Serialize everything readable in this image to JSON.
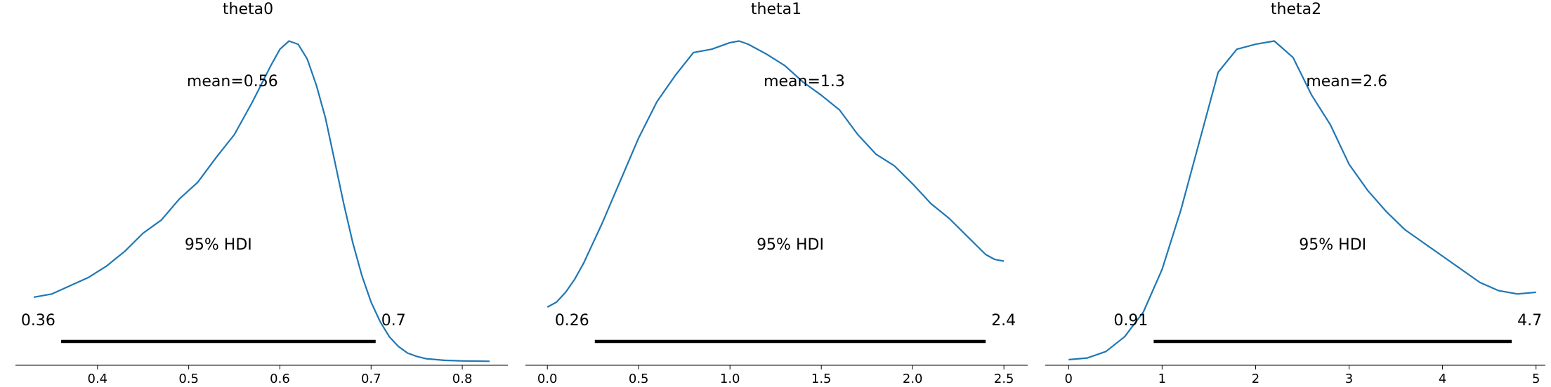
{
  "chart_data": [
    {
      "type": "line",
      "title": "theta0",
      "mean_label": "mean=0.56",
      "hdi_label": "95% HDI",
      "hdi": {
        "low": 0.36,
        "high": 0.705,
        "low_label": "0.36",
        "high_label": "0.7"
      },
      "xlim": [
        0.31,
        0.85
      ],
      "ylim": [
        0,
        1.05
      ],
      "xticks": [
        0.4,
        0.5,
        0.6,
        0.7,
        0.8
      ],
      "xtick_labels": [
        "0.4",
        "0.5",
        "0.6",
        "0.7",
        "0.8"
      ],
      "x": [
        0.33,
        0.35,
        0.37,
        0.39,
        0.41,
        0.43,
        0.45,
        0.47,
        0.49,
        0.51,
        0.53,
        0.55,
        0.57,
        0.59,
        0.6,
        0.61,
        0.62,
        0.63,
        0.64,
        0.65,
        0.66,
        0.67,
        0.68,
        0.69,
        0.7,
        0.71,
        0.72,
        0.73,
        0.74,
        0.75,
        0.76,
        0.78,
        0.8,
        0.83
      ],
      "y": [
        0.205,
        0.215,
        0.24,
        0.265,
        0.3,
        0.345,
        0.4,
        0.44,
        0.505,
        0.555,
        0.63,
        0.7,
        0.8,
        0.91,
        0.96,
        0.985,
        0.975,
        0.93,
        0.85,
        0.75,
        0.62,
        0.49,
        0.37,
        0.27,
        0.19,
        0.13,
        0.085,
        0.055,
        0.035,
        0.025,
        0.018,
        0.013,
        0.011,
        0.01
      ]
    },
    {
      "type": "line",
      "title": "theta1",
      "mean_label": "mean=1.3",
      "hdi_label": "95% HDI",
      "hdi": {
        "low": 0.26,
        "high": 2.4,
        "low_label": "0.26",
        "high_label": "2.4"
      },
      "xlim": [
        -0.12,
        2.63
      ],
      "ylim": [
        0,
        1.05
      ],
      "xticks": [
        0.0,
        0.5,
        1.0,
        1.5,
        2.0,
        2.5
      ],
      "xtick_labels": [
        "0.0",
        "0.5",
        "1.0",
        "1.5",
        "2.0",
        "2.5"
      ],
      "x": [
        0.0,
        0.05,
        0.1,
        0.15,
        0.2,
        0.3,
        0.4,
        0.5,
        0.6,
        0.7,
        0.8,
        0.9,
        1.0,
        1.05,
        1.1,
        1.2,
        1.3,
        1.4,
        1.5,
        1.6,
        1.7,
        1.8,
        1.9,
        2.0,
        2.1,
        2.2,
        2.3,
        2.4,
        2.45,
        2.5
      ],
      "y": [
        0.175,
        0.19,
        0.22,
        0.26,
        0.31,
        0.43,
        0.56,
        0.69,
        0.8,
        0.88,
        0.95,
        0.96,
        0.98,
        0.985,
        0.975,
        0.945,
        0.91,
        0.86,
        0.82,
        0.775,
        0.7,
        0.64,
        0.605,
        0.55,
        0.49,
        0.445,
        0.39,
        0.335,
        0.32,
        0.315
      ]
    },
    {
      "type": "line",
      "title": "theta2",
      "mean_label": "mean=2.6",
      "hdi_label": "95% HDI",
      "hdi": {
        "low": 0.91,
        "high": 4.74,
        "low_label": "0.91",
        "high_label": "4.7"
      },
      "xlim": [
        -0.25,
        5.1
      ],
      "ylim": [
        0,
        1.05
      ],
      "xticks": [
        0,
        1,
        2,
        3,
        4,
        5
      ],
      "xtick_labels": [
        "0",
        "1",
        "2",
        "3",
        "4",
        "5"
      ],
      "x": [
        0.0,
        0.2,
        0.4,
        0.6,
        0.8,
        1.0,
        1.2,
        1.4,
        1.6,
        1.8,
        2.0,
        2.2,
        2.4,
        2.6,
        2.8,
        3.0,
        3.2,
        3.4,
        3.6,
        3.8,
        4.0,
        4.2,
        4.4,
        4.6,
        4.8,
        5.0
      ],
      "y": [
        0.015,
        0.02,
        0.04,
        0.085,
        0.16,
        0.29,
        0.47,
        0.68,
        0.89,
        0.96,
        0.975,
        0.985,
        0.935,
        0.82,
        0.73,
        0.61,
        0.53,
        0.465,
        0.41,
        0.37,
        0.33,
        0.29,
        0.25,
        0.225,
        0.215,
        0.22
      ]
    }
  ],
  "colors": {
    "line": "#1f77b4",
    "hdi_bar": "#000000",
    "axis": "#000000"
  }
}
